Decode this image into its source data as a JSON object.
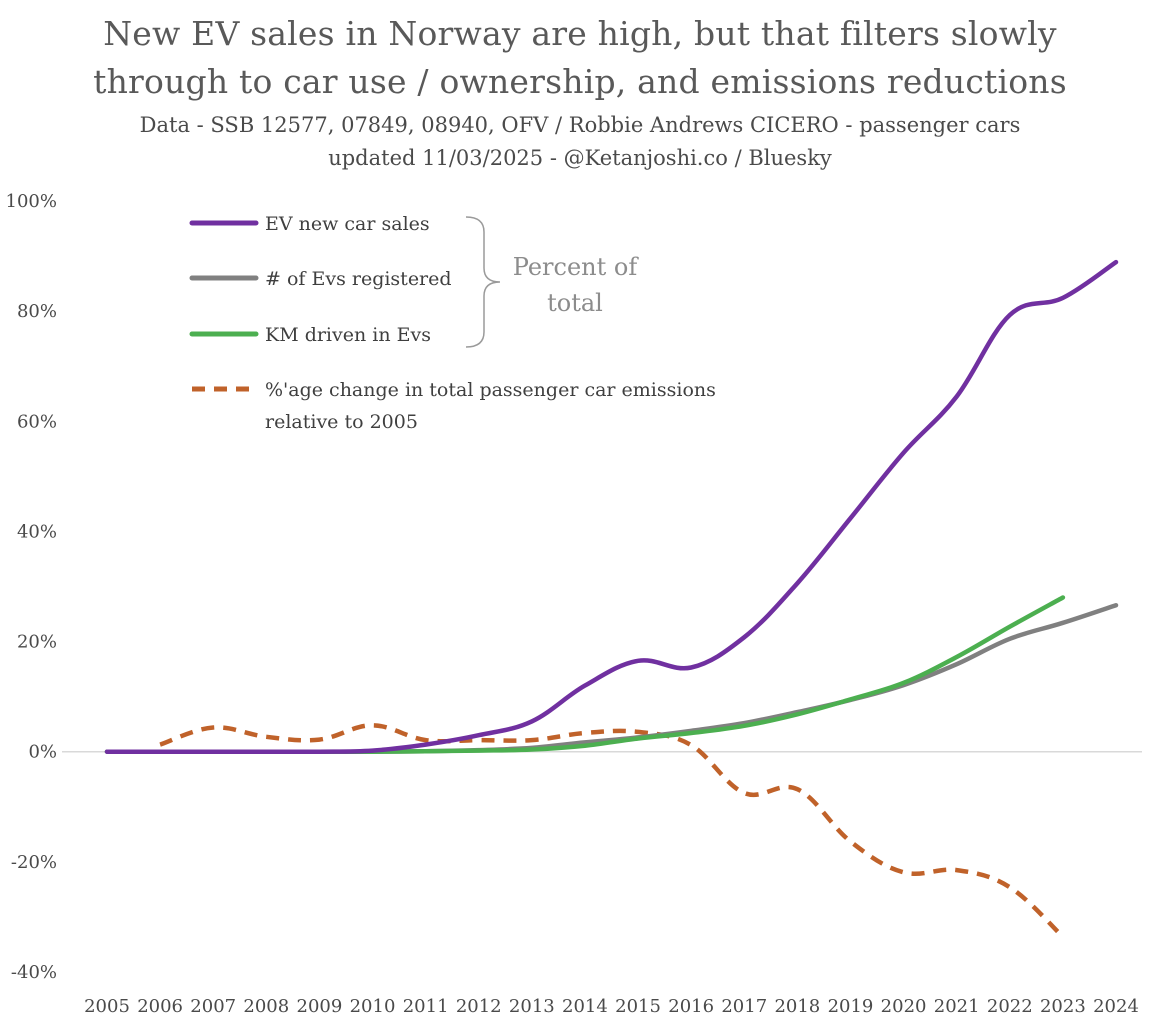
{
  "header": {
    "title_line1": "New EV sales in Norway are high, but that filters slowly",
    "title_line2": "through to car use / ownership, and emissions reductions",
    "subtitle_line1": "Data - SSB 12577, 07849, 08940, OFV / Robbie Andrews CICERO - passenger cars",
    "subtitle_line2": "updated 11/03/2025 - @Ketanjoshi.co / Bluesky"
  },
  "chart_data": {
    "type": "line",
    "title": "New EV sales in Norway are high, but that filters slowly through to car use / ownership, and emissions reductions",
    "xlabel": "",
    "ylabel": "",
    "ylim": [
      -40,
      100
    ],
    "yticks": [
      100,
      80,
      60,
      40,
      20,
      0,
      -20,
      -40
    ],
    "ytick_labels": [
      "100%",
      "80%",
      "60%",
      "40%",
      "20%",
      "0%",
      "-20%",
      "-40%"
    ],
    "categories": [
      "2005",
      "2006",
      "2007",
      "2008",
      "2009",
      "2010",
      "2011",
      "2012",
      "2013",
      "2014",
      "2015",
      "2016",
      "2017",
      "2018",
      "2019",
      "2020",
      "2021",
      "2022",
      "2023",
      "2024"
    ],
    "legend_group_label": "Percent of total",
    "series": [
      {
        "name": "EV new car sales",
        "key": "ev_sales",
        "color": "#7030a0",
        "dashed": false,
        "values": [
          0,
          0,
          0,
          0,
          0,
          0.2,
          1.3,
          3.0,
          5.5,
          12.0,
          16.5,
          15.3,
          20.8,
          30.6,
          42.4,
          54.3,
          64.5,
          79.3,
          82.4,
          88.9
        ]
      },
      {
        "name": "# of Evs registered",
        "key": "ev_registered",
        "color": "#808080",
        "dashed": false,
        "values": [
          0,
          0,
          0,
          0,
          0,
          0,
          0.1,
          0.3,
          0.7,
          1.7,
          2.6,
          3.8,
          5.2,
          7.2,
          9.4,
          12.1,
          15.9,
          20.5,
          23.4,
          26.6
        ]
      },
      {
        "name": "KM driven in Evs",
        "key": "ev_km",
        "color": "#4caf50",
        "dashed": false,
        "values": [
          0,
          0,
          0,
          0,
          0,
          0,
          0.1,
          0.2,
          0.4,
          1.1,
          2.4,
          3.4,
          4.7,
          6.8,
          9.5,
          12.5,
          17.2,
          22.7,
          28.0,
          null
        ]
      },
      {
        "name": "%'age change in total passenger car emissions relative to 2005",
        "legend_line1": "%'age change in total passenger car emissions",
        "legend_line2": "relative to 2005",
        "key": "emissions",
        "color": "#c0622a",
        "dashed": true,
        "values": [
          null,
          1.3,
          4.4,
          2.7,
          2.2,
          4.8,
          2.1,
          2.1,
          2.1,
          3.4,
          3.6,
          1.2,
          -7.5,
          -6.8,
          -16.3,
          -21.9,
          -21.5,
          -24.6,
          -33.6,
          null
        ]
      }
    ],
    "legend_position": "top-left"
  }
}
